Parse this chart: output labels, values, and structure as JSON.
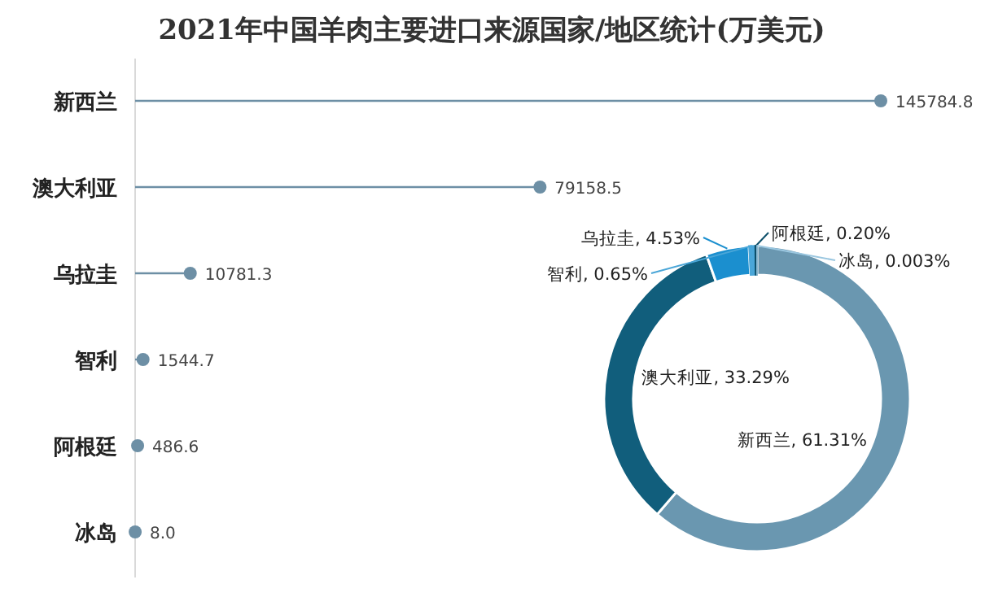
{
  "chart_data": [
    {
      "type": "lollipop",
      "title": "2021年中国羊肉主要进口来源国家/地区统计(万美元)",
      "orientation": "horizontal",
      "categories": [
        "新西兰",
        "澳大利亚",
        "乌拉圭",
        "智利",
        "阿根廷",
        "冰岛"
      ],
      "values": [
        145784.8,
        79158.5,
        10781.3,
        1544.7,
        486.6,
        8.0
      ],
      "value_labels": [
        "145784.8",
        "79158.5",
        "10781.3",
        "1544.7",
        "486.6",
        "8.0"
      ],
      "color": "#6d8fa5",
      "marker": "circle"
    },
    {
      "type": "donut",
      "categories": [
        "新西兰",
        "澳大利亚",
        "乌拉圭",
        "智利",
        "阿根廷",
        "冰岛"
      ],
      "values": [
        61.31,
        33.29,
        4.53,
        0.65,
        0.2,
        0.003
      ],
      "value_labels": [
        "61.31%",
        "33.29%",
        "4.53%",
        "0.65%",
        "0.20%",
        "0.003%"
      ],
      "colors": [
        "#6a97b0",
        "#115e7c",
        "#1b8fcf",
        "#4aa6d8",
        "#0d4f6a",
        "#9bc7e0"
      ]
    }
  ]
}
